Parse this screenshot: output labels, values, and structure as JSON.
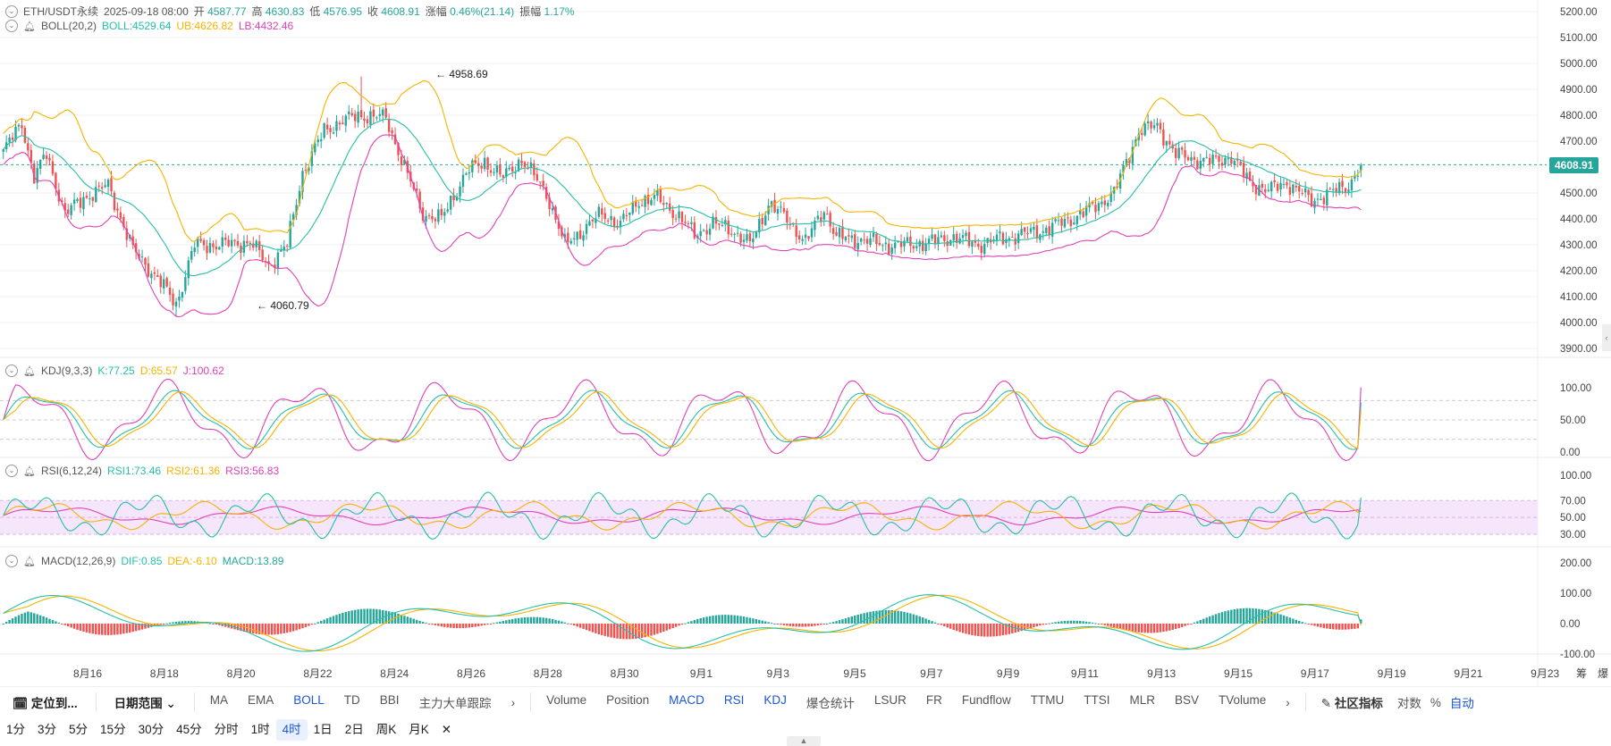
{
  "symbol_bar": {
    "symbol": "ETH/USDT永续",
    "datetime": "2025-09-18 08:00",
    "open_label": "开",
    "open": "4587.77",
    "high_label": "高",
    "high": "4630.83",
    "low_label": "低",
    "low": "4576.95",
    "close_label": "收",
    "close": "4608.91",
    "change_label": "涨幅",
    "change": "0.46%(21.14)",
    "amp_label": "振幅",
    "amp": "1.17%"
  },
  "boll": {
    "name": "BOLL(20,2)",
    "mid": "BOLL:4529.64",
    "ub": "UB:4626.82",
    "lb": "LB:4432.46"
  },
  "kdj": {
    "name": "KDJ(9,3,3)",
    "k": "K:77.25",
    "d": "D:65.57",
    "j": "J:100.62"
  },
  "rsi": {
    "name": "RSI(6,12,24)",
    "r1": "RSI1:73.46",
    "r2": "RSI2:61.36",
    "r3": "RSI3:56.83"
  },
  "macd": {
    "name": "MACD(12,26,9)",
    "dif": "DIF:0.85",
    "dea": "DEA:-6.10",
    "macd": "MACD:13.89"
  },
  "current_price_tag": "4608.91",
  "high_marker": "← 4958.69",
  "low_marker": "← 4060.79",
  "colors": {
    "up": "#26a69a",
    "down": "#ef5350",
    "boll_mid": "#26bfa8",
    "boll_ub": "#f5b300",
    "boll_lb": "#e040b8",
    "k": "#26bfa8",
    "d": "#f5b300",
    "j": "#e040b8",
    "accent": "#1a56db"
  },
  "chart_data": {
    "type": "candlestick",
    "price_axis_ticks": [
      "5200.00",
      "5100.00",
      "5000.00",
      "4900.00",
      "4800.00",
      "4700.00",
      "4600.00",
      "4500.00",
      "4400.00",
      "4300.00",
      "4200.00",
      "4100.00",
      "4000.00",
      "3900.00"
    ],
    "kdj_axis_ticks": [
      "100.00",
      "50.00",
      "0.00"
    ],
    "rsi_axis_ticks": [
      "100.00",
      "70.00",
      "50.00",
      "30.00"
    ],
    "macd_axis_ticks": [
      "200.00",
      "100.00",
      "0.00",
      "-100.00"
    ],
    "x_ticks": [
      "8月16",
      "8月18",
      "8月20",
      "8月22",
      "8月24",
      "8月26",
      "8月28",
      "8月30",
      "9月1",
      "9月3",
      "9月5",
      "9月7",
      "9月9",
      "9月11",
      "9月13",
      "9月15",
      "9月17",
      "9月19",
      "9月21",
      "9月23"
    ],
    "close_anchors": [
      [
        0,
        4660
      ],
      [
        6,
        4770
      ],
      [
        10,
        4560
      ],
      [
        14,
        4650
      ],
      [
        20,
        4420
      ],
      [
        26,
        4480
      ],
      [
        34,
        4530
      ],
      [
        42,
        4280
      ],
      [
        50,
        4170
      ],
      [
        56,
        4070
      ],
      [
        62,
        4300
      ],
      [
        70,
        4300
      ],
      [
        80,
        4310
      ],
      [
        86,
        4220
      ],
      [
        92,
        4300
      ],
      [
        97,
        4580
      ],
      [
        104,
        4740
      ],
      [
        110,
        4780
      ],
      [
        116,
        4800
      ],
      [
        124,
        4790
      ],
      [
        130,
        4600
      ],
      [
        136,
        4420
      ],
      [
        142,
        4400
      ],
      [
        150,
        4580
      ],
      [
        156,
        4620
      ],
      [
        162,
        4560
      ],
      [
        168,
        4630
      ],
      [
        176,
        4500
      ],
      [
        182,
        4300
      ],
      [
        188,
        4360
      ],
      [
        194,
        4420
      ],
      [
        200,
        4380
      ],
      [
        206,
        4470
      ],
      [
        212,
        4480
      ],
      [
        218,
        4420
      ],
      [
        224,
        4340
      ],
      [
        230,
        4380
      ],
      [
        236,
        4360
      ],
      [
        242,
        4300
      ],
      [
        248,
        4460
      ],
      [
        254,
        4400
      ],
      [
        260,
        4310
      ],
      [
        266,
        4440
      ],
      [
        270,
        4330
      ],
      [
        278,
        4320
      ],
      [
        286,
        4300
      ],
      [
        292,
        4300
      ],
      [
        300,
        4310
      ],
      [
        308,
        4330
      ],
      [
        316,
        4300
      ],
      [
        322,
        4320
      ],
      [
        330,
        4340
      ],
      [
        338,
        4360
      ],
      [
        346,
        4400
      ],
      [
        354,
        4450
      ],
      [
        360,
        4500
      ],
      [
        368,
        4740
      ],
      [
        374,
        4760
      ],
      [
        380,
        4650
      ],
      [
        386,
        4630
      ],
      [
        392,
        4620
      ],
      [
        398,
        4640
      ],
      [
        404,
        4540
      ],
      [
        410,
        4510
      ],
      [
        416,
        4540
      ],
      [
        424,
        4470
      ],
      [
        430,
        4500
      ],
      [
        436,
        4530
      ],
      [
        440,
        4608.91
      ]
    ],
    "high": {
      "label": "4958.69",
      "value": 4958.69
    },
    "low": {
      "label": "4060.79",
      "value": 4060.79
    },
    "last": {
      "open": 4587.77,
      "high": 4630.83,
      "low": 4576.95,
      "close": 4608.91
    }
  },
  "toolbar": {
    "locate": "定位到...",
    "range": "日期范围",
    "indicators_main": [
      "MA",
      "EMA",
      "BOLL",
      "TD",
      "BBI",
      "主力大单跟踪"
    ],
    "indicators_sub": [
      "Volume",
      "Position",
      "MACD",
      "RSI",
      "KDJ",
      "爆仓统计",
      "LSUR",
      "FR",
      "Fundflow",
      "TTMU",
      "TTSI",
      "MLR",
      "BSV",
      "TVolume"
    ],
    "community": "社区指标",
    "log": "对数",
    "percent": "%",
    "auto": "自动",
    "right_labels": [
      "筹",
      "爆"
    ]
  },
  "timeframes": [
    "1分",
    "3分",
    "5分",
    "15分",
    "30分",
    "45分",
    "分时",
    "1时",
    "4时",
    "1日",
    "2日",
    "周K",
    "月K"
  ],
  "active_timeframe": "4时"
}
